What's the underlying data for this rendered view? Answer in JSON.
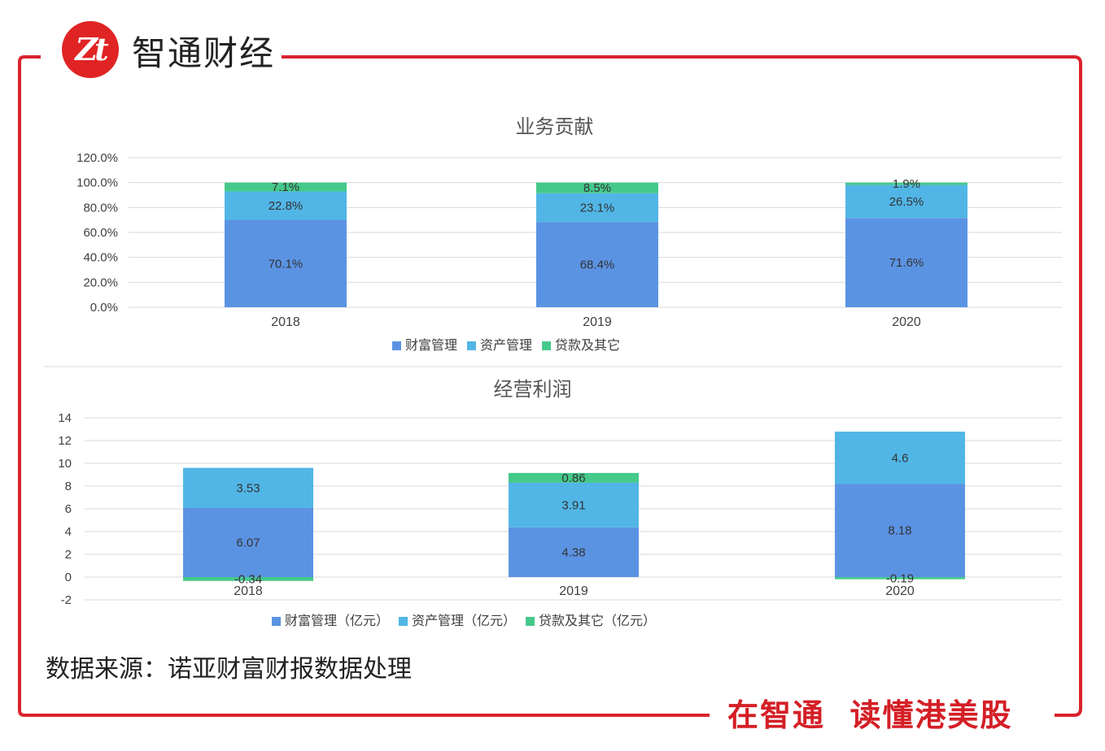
{
  "brand": {
    "logo_text": "Zt",
    "name": "智通财经"
  },
  "source_note": "数据来源：诺亚财富财报数据处理",
  "slogan": "在智通  读懂港美股",
  "colors": {
    "frame": "#d9232d",
    "wealth": "#5b93e3",
    "asset": "#51b6e6",
    "loan": "#45c98b",
    "grid": "#d9d9d9",
    "text": "#404040"
  },
  "chart_data": [
    {
      "type": "bar",
      "stacked": true,
      "title": "业务贡献",
      "categories": [
        "2018",
        "2019",
        "2020"
      ],
      "ylim": [
        0,
        120
      ],
      "yticks": [
        "0.0%",
        "20.0%",
        "40.0%",
        "60.0%",
        "80.0%",
        "100.0%",
        "120.0%"
      ],
      "ytick_values": [
        0,
        20,
        40,
        60,
        80,
        100,
        120
      ],
      "series": [
        {
          "name": "财富管理",
          "values": [
            70.1,
            68.4,
            71.6
          ],
          "labels": [
            "70.1%",
            "68.4%",
            "71.6%"
          ]
        },
        {
          "name": "资产管理",
          "values": [
            22.8,
            23.1,
            26.5
          ],
          "labels": [
            "22.8%",
            "23.1%",
            "26.5%"
          ]
        },
        {
          "name": "贷款及其它",
          "values": [
            7.1,
            8.5,
            1.9
          ],
          "labels": [
            "7.1%",
            "8.5%",
            "1.9%"
          ]
        }
      ],
      "legend": "bottom",
      "grid": true
    },
    {
      "type": "bar",
      "stacked": true,
      "title": "经营利润",
      "categories": [
        "2018",
        "2019",
        "2020"
      ],
      "ylim": [
        -2,
        14
      ],
      "yticks": [
        "-2",
        "0",
        "2",
        "4",
        "6",
        "8",
        "10",
        "12",
        "14"
      ],
      "ytick_values": [
        -2,
        0,
        2,
        4,
        6,
        8,
        10,
        12,
        14
      ],
      "series": [
        {
          "name": "财富管理（亿元）",
          "values": [
            6.07,
            4.38,
            8.18
          ],
          "labels": [
            "6.07",
            "4.38",
            "8.18"
          ]
        },
        {
          "name": "资产管理（亿元）",
          "values": [
            3.53,
            3.91,
            4.6
          ],
          "labels": [
            "3.53",
            "3.91",
            "4.6"
          ]
        },
        {
          "name": "贷款及其它（亿元）",
          "values": [
            -0.34,
            0.86,
            -0.19
          ],
          "labels": [
            "-0.34",
            "0.86",
            "-0.19"
          ]
        }
      ],
      "legend": "bottom",
      "grid": true
    }
  ]
}
